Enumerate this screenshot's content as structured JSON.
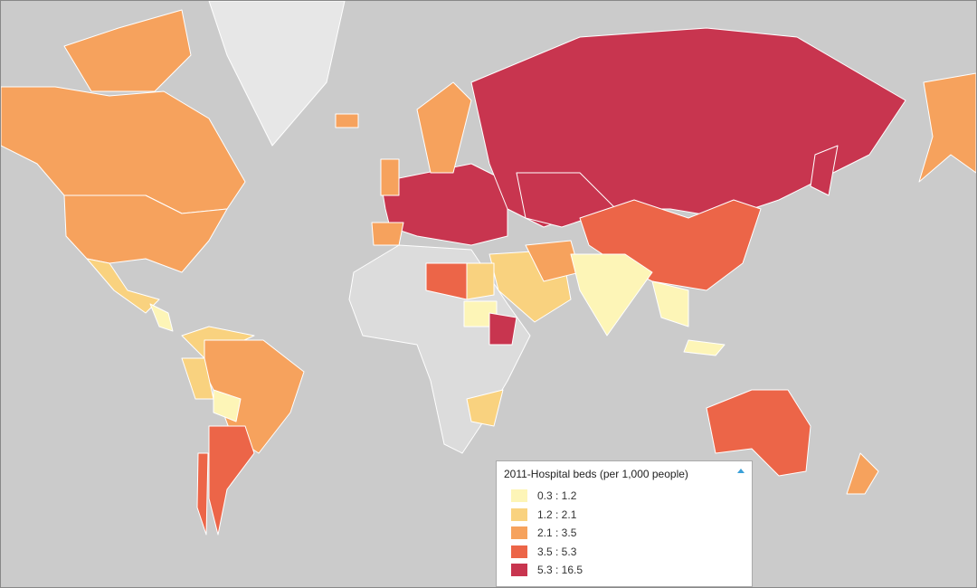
{
  "legend": {
    "title": "2011-Hospital beds (per 1,000 people)",
    "items": [
      {
        "label": "0.3 : 1.2",
        "color": "#fdf5b7"
      },
      {
        "label": "1.2 : 2.1",
        "color": "#f9d27f"
      },
      {
        "label": "2.1 : 3.5",
        "color": "#f6a25d"
      },
      {
        "label": "3.5 : 5.3",
        "color": "#ec6548"
      },
      {
        "label": "5.3 : 16.5",
        "color": "#c8354f"
      }
    ]
  }
}
